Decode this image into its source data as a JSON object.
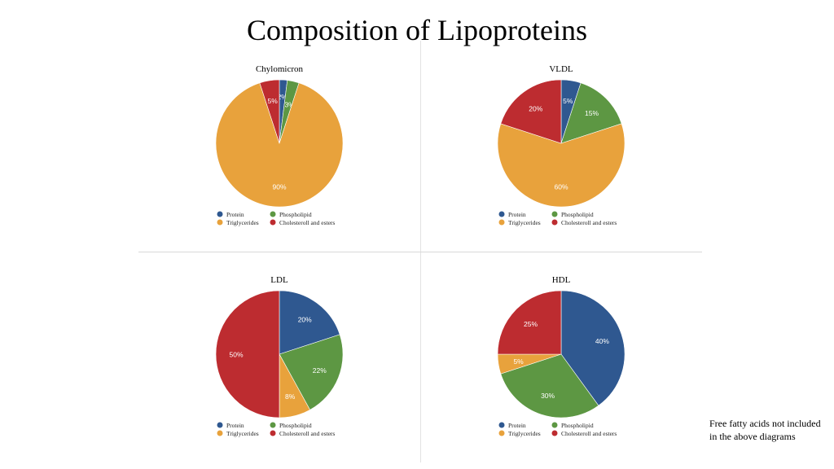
{
  "slide": {
    "title": "Composition of Lipoproteins",
    "note": "Free fatty acids not included in the above diagrams"
  },
  "colors": {
    "Protein": "#2f5890",
    "Phospholipid": "#5d9743",
    "Triglycerides": "#e8a23c",
    "Cholesteroll and esters": "#bd2c30"
  },
  "chart_data": [
    {
      "type": "pie",
      "title": "Chylomicron",
      "series": [
        {
          "values": [
            2,
            3,
            90,
            5
          ]
        }
      ],
      "categories": [
        "Protein",
        "Phospholipid",
        "Triglycerides",
        "Cholesteroll and esters"
      ],
      "labels": [
        "2%",
        "3%",
        "90%",
        "5%"
      ],
      "legend": "bottom"
    },
    {
      "type": "pie",
      "title": "VLDL",
      "series": [
        {
          "values": [
            5,
            15,
            60,
            20
          ]
        }
      ],
      "categories": [
        "Protein",
        "Phospholipid",
        "Triglycerides",
        "Cholesteroll and esters"
      ],
      "labels": [
        "5%",
        "15%",
        "60%",
        "20%"
      ],
      "legend": "bottom"
    },
    {
      "type": "pie",
      "title": "LDL",
      "series": [
        {
          "values": [
            20,
            22,
            8,
            50
          ]
        }
      ],
      "categories": [
        "Protein",
        "Phospholipid",
        "Triglycerides",
        "Cholesteroll and esters"
      ],
      "labels": [
        "20%",
        "22%",
        "8%",
        "50%"
      ],
      "legend": "bottom"
    },
    {
      "type": "pie",
      "title": "HDL",
      "series": [
        {
          "values": [
            40,
            30,
            5,
            25
          ]
        }
      ],
      "categories": [
        "Protein",
        "Phospholipid",
        "Triglycerides",
        "Cholesteroll and esters"
      ],
      "labels": [
        "40%",
        "30%",
        "5%",
        "25%"
      ],
      "legend": "bottom"
    }
  ]
}
